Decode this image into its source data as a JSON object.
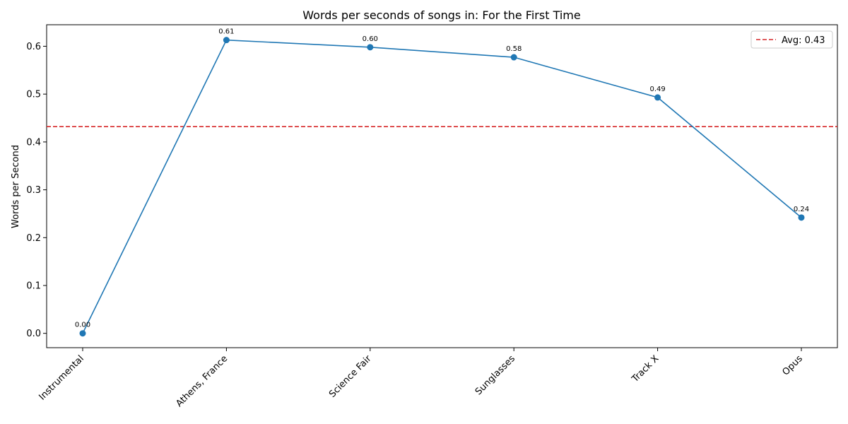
{
  "chart_data": {
    "type": "line",
    "title": "Words per seconds of songs in: For the First Time",
    "xlabel": "",
    "ylabel": "Words per Second",
    "categories": [
      "Instrumental",
      "Athens, France",
      "Science Fair",
      "Sunglasses",
      "Track X",
      "Opus"
    ],
    "series": [
      {
        "values": [
          0.0,
          0.613,
          0.598,
          0.577,
          0.493,
          0.242
        ],
        "labels": [
          "0.00",
          "0.61",
          "0.60",
          "0.58",
          "0.49",
          "0.24"
        ],
        "color": "#1f77b4",
        "marker": "circle"
      }
    ],
    "reference_line": {
      "label": "Avg: 0.43",
      "value": 0.432,
      "color": "#d62728",
      "style": "dashed"
    },
    "ylim": [
      -0.03,
      0.645
    ],
    "yticks": [
      0.0,
      0.1,
      0.2,
      0.3,
      0.4,
      0.5,
      0.6
    ],
    "ytick_labels": [
      "0.0",
      "0.1",
      "0.2",
      "0.3",
      "0.4",
      "0.5",
      "0.6"
    ],
    "grid": false,
    "legend_position": "top-right"
  }
}
